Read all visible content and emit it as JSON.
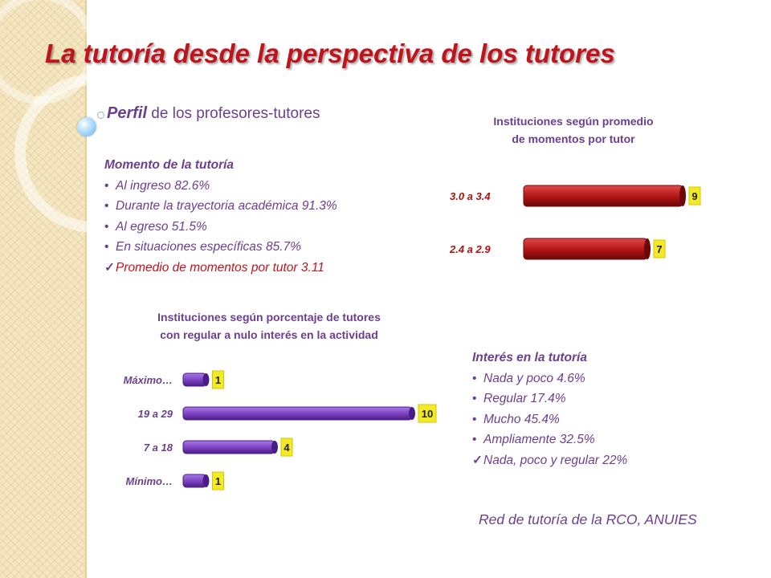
{
  "title": "La tutoría desde la perspectiva de los tutores",
  "subtitle": {
    "lead": "Perfil",
    "rest": " de los profesores-tutores"
  },
  "momento": {
    "heading": "Momento de la tutoría",
    "items": [
      "Al ingreso  82.6%",
      "Durante la trayectoria académica   91.3%",
      "Al egreso   51.5%",
      "En situaciones específicas    85.7%"
    ],
    "check": "Promedio de momentos por tutor 3.11"
  },
  "interes": {
    "heading": "Interés en la tutoría",
    "items": [
      "Nada y poco  4.6%",
      "Regular   17.4%",
      "Mucho   45.4%",
      "Ampliamente   32.5%"
    ],
    "check": "Nada, poco y regular  22%"
  },
  "source": "Red de tutoría de la RCO, ANUIES",
  "colors": {
    "title": "#c0141c",
    "text": "#6b3f90",
    "bar_red": "#a81010",
    "bar_purple": "#7a3fc0",
    "label_box": "#f2ea26"
  },
  "chart_data": [
    {
      "type": "bar",
      "orientation": "horizontal",
      "title_lines": [
        "Instituciones según promedio",
        "de momentos por tutor"
      ],
      "categories": [
        "3.0  a  3.4",
        "2.4  a  2.9"
      ],
      "values": [
        9,
        7
      ],
      "value_labels": [
        "9",
        "7"
      ],
      "xlim": [
        0,
        10
      ]
    },
    {
      "type": "bar",
      "orientation": "horizontal",
      "title_lines": [
        "Instituciones según porcentaje de tutores",
        "con regular  a nulo interés en la actividad"
      ],
      "categories": [
        "Máximo…",
        "19  a  29",
        "7  a  18",
        "Mínimo…"
      ],
      "values": [
        1,
        10,
        4,
        1
      ],
      "value_labels": [
        "1",
        "10",
        "4",
        "1"
      ],
      "xlim": [
        0,
        10
      ]
    }
  ]
}
